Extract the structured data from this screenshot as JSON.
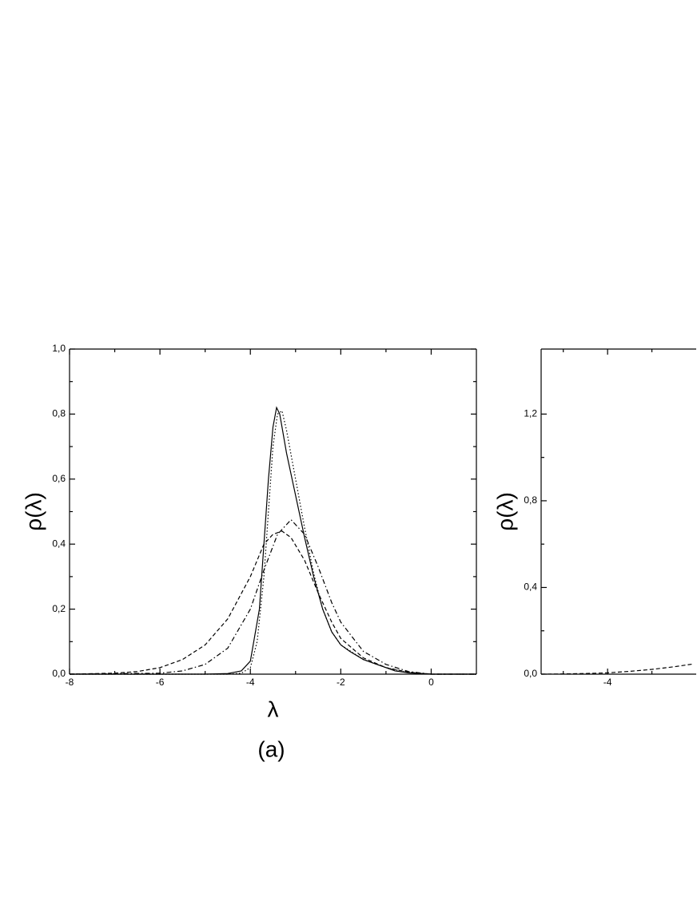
{
  "chart_data": [
    {
      "type": "line",
      "title": "(a)",
      "xlabel": "λ",
      "ylabel": "ρ(λ)",
      "xlim": [
        -8,
        1
      ],
      "xticks": [
        -8,
        -6,
        -4,
        -2,
        0
      ],
      "ylim": [
        0,
        1.0
      ],
      "yticks": [
        {
          "value": 0,
          "label": "0,0"
        },
        {
          "value": 0.2,
          "label": "0,2"
        },
        {
          "value": 0.4,
          "label": "0,4"
        },
        {
          "value": 0.6,
          "label": "0,6"
        },
        {
          "value": 0.8,
          "label": "0,8"
        },
        {
          "value": 1.0,
          "label": "1,0"
        }
      ],
      "grid": false,
      "series": [
        {
          "color": "#000000",
          "line_style": "solid",
          "x": [
            -8,
            -5,
            -4.5,
            -4.2,
            -4.0,
            -3.8,
            -3.7,
            -3.6,
            -3.5,
            -3.42,
            -3.35,
            -3.2,
            -3.0,
            -2.8,
            -2.6,
            -2.4,
            -2.2,
            -2.0,
            -1.8,
            -1.5,
            -1.2,
            -1.0,
            -0.8,
            -0.5,
            0,
            1
          ],
          "values": [
            0,
            0,
            0.002,
            0.01,
            0.04,
            0.2,
            0.4,
            0.6,
            0.76,
            0.82,
            0.8,
            0.68,
            0.55,
            0.42,
            0.3,
            0.2,
            0.13,
            0.09,
            0.07,
            0.045,
            0.03,
            0.02,
            0.01,
            0.004,
            0,
            0
          ]
        },
        {
          "color": "#000000",
          "line_style": "dotted",
          "x": [
            -8,
            -4.5,
            -4.2,
            -4.0,
            -3.85,
            -3.7,
            -3.6,
            -3.5,
            -3.4,
            -3.3,
            -3.2,
            -3.0,
            -2.8,
            -2.6,
            -2.4,
            -2.2,
            -2.0,
            -1.5,
            -1.0,
            -0.5,
            0,
            1
          ],
          "values": [
            0,
            0,
            0.003,
            0.02,
            0.1,
            0.3,
            0.5,
            0.7,
            0.8,
            0.81,
            0.75,
            0.6,
            0.45,
            0.31,
            0.2,
            0.13,
            0.09,
            0.045,
            0.02,
            0.005,
            0,
            0
          ]
        },
        {
          "color": "#000000",
          "line_style": "dashed",
          "x": [
            -8,
            -7,
            -6.5,
            -6,
            -5.5,
            -5,
            -4.5,
            -4,
            -3.7,
            -3.5,
            -3.3,
            -3.1,
            -2.8,
            -2.5,
            -2.2,
            -2,
            -1.5,
            -1,
            -0.5,
            0,
            1
          ],
          "values": [
            0,
            0.003,
            0.008,
            0.02,
            0.045,
            0.09,
            0.17,
            0.3,
            0.4,
            0.43,
            0.44,
            0.42,
            0.35,
            0.25,
            0.16,
            0.11,
            0.05,
            0.02,
            0.006,
            0,
            0
          ]
        },
        {
          "color": "#000000",
          "line_style": "dashdot",
          "x": [
            -8,
            -6,
            -5.5,
            -5,
            -4.5,
            -4,
            -3.7,
            -3.4,
            -3.1,
            -2.8,
            -2.5,
            -2.2,
            -2,
            -1.5,
            -1,
            -0.5,
            0,
            1
          ],
          "values": [
            0,
            0.003,
            0.01,
            0.03,
            0.08,
            0.2,
            0.32,
            0.43,
            0.475,
            0.43,
            0.33,
            0.22,
            0.16,
            0.07,
            0.03,
            0.008,
            0,
            0
          ]
        }
      ]
    },
    {
      "type": "line",
      "ylabel": "ρ(λ)",
      "xlim": [
        -5.5,
        -2
      ],
      "xticks": [
        -4
      ],
      "ylim": [
        0,
        1.5
      ],
      "yticks": [
        {
          "value": 0,
          "label": "0,0"
        },
        {
          "value": 0.4,
          "label": "0,4"
        },
        {
          "value": 0.8,
          "label": "0,8"
        },
        {
          "value": 1.2,
          "label": "1,2"
        }
      ],
      "grid": false,
      "series": [
        {
          "color": "#000000",
          "line_style": "dashed",
          "x": [
            -5.5,
            -5,
            -4.5,
            -4,
            -3.5,
            -3,
            -2.5,
            -2.1
          ],
          "values": [
            0,
            0.001,
            0.003,
            0.006,
            0.013,
            0.022,
            0.034,
            0.046
          ]
        }
      ]
    }
  ]
}
